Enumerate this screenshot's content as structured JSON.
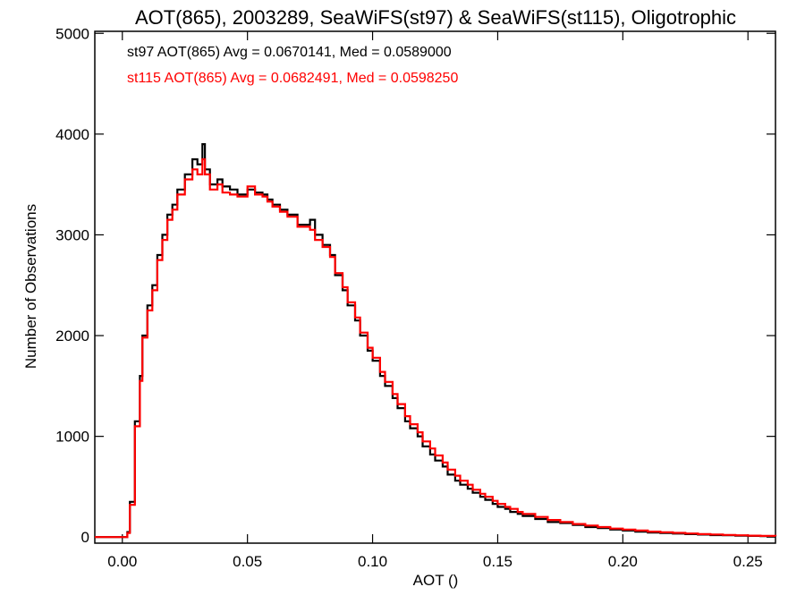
{
  "chart_data": {
    "type": "line",
    "title": "AOT(865), 2003289, SeaWiFS(st97) & SeaWiFS(st115), Oligotrophic",
    "xlabel": "AOT ()",
    "ylabel": "Number of Observations",
    "xlim": [
      -0.011,
      0.261
    ],
    "ylim": [
      -60,
      5020
    ],
    "x_ticks": [
      0.0,
      0.05,
      0.1,
      0.15,
      0.2,
      0.25
    ],
    "x_tick_labels": [
      "0.00",
      "0.05",
      "0.10",
      "0.15",
      "0.20",
      "0.25"
    ],
    "y_ticks": [
      0,
      1000,
      2000,
      3000,
      4000,
      5000
    ],
    "y_tick_labels": [
      "0",
      "1000",
      "2000",
      "3000",
      "4000",
      "5000"
    ],
    "grid": false,
    "legend_position": "top-left",
    "x": [
      -0.011,
      0.0,
      0.002,
      0.003,
      0.005,
      0.007,
      0.008,
      0.01,
      0.012,
      0.014,
      0.016,
      0.018,
      0.02,
      0.022,
      0.025,
      0.028,
      0.03,
      0.032,
      0.033,
      0.035,
      0.038,
      0.04,
      0.043,
      0.046,
      0.05,
      0.053,
      0.056,
      0.058,
      0.06,
      0.063,
      0.066,
      0.07,
      0.073,
      0.075,
      0.077,
      0.08,
      0.083,
      0.085,
      0.088,
      0.09,
      0.093,
      0.095,
      0.098,
      0.1,
      0.103,
      0.105,
      0.108,
      0.11,
      0.113,
      0.115,
      0.118,
      0.12,
      0.123,
      0.125,
      0.128,
      0.13,
      0.133,
      0.135,
      0.138,
      0.14,
      0.143,
      0.145,
      0.148,
      0.15,
      0.153,
      0.155,
      0.158,
      0.16,
      0.165,
      0.17,
      0.175,
      0.18,
      0.185,
      0.19,
      0.195,
      0.2,
      0.205,
      0.21,
      0.215,
      0.22,
      0.225,
      0.23,
      0.235,
      0.24,
      0.245,
      0.25,
      0.255,
      0.261
    ],
    "series": [
      {
        "name": "st97",
        "color": "#000000",
        "values": [
          0,
          0,
          50,
          350,
          1150,
          1600,
          2000,
          2300,
          2500,
          2800,
          3000,
          3200,
          3300,
          3450,
          3600,
          3750,
          3700,
          3900,
          3650,
          3500,
          3550,
          3480,
          3450,
          3400,
          3450,
          3420,
          3400,
          3350,
          3300,
          3250,
          3200,
          3100,
          3100,
          3150,
          3000,
          2900,
          2800,
          2600,
          2450,
          2300,
          2150,
          2000,
          1850,
          1750,
          1600,
          1500,
          1380,
          1280,
          1150,
          1080,
          1000,
          900,
          820,
          760,
          700,
          620,
          560,
          520,
          480,
          440,
          400,
          370,
          330,
          300,
          280,
          250,
          230,
          210,
          180,
          150,
          140,
          120,
          100,
          90,
          75,
          65,
          55,
          45,
          40,
          35,
          30,
          25,
          20,
          18,
          15,
          12,
          10,
          8
        ]
      },
      {
        "name": "st115",
        "color": "#ff0000",
        "values": [
          0,
          0,
          40,
          320,
          1100,
          1550,
          1980,
          2250,
          2450,
          2750,
          2950,
          3150,
          3250,
          3400,
          3550,
          3650,
          3600,
          3750,
          3600,
          3450,
          3500,
          3420,
          3400,
          3380,
          3480,
          3400,
          3380,
          3330,
          3280,
          3230,
          3180,
          3080,
          3080,
          3050,
          2950,
          2880,
          2780,
          2620,
          2480,
          2330,
          2180,
          2030,
          1880,
          1780,
          1640,
          1540,
          1420,
          1320,
          1200,
          1120,
          1040,
          950,
          880,
          810,
          740,
          670,
          610,
          560,
          520,
          470,
          430,
          400,
          360,
          330,
          300,
          280,
          250,
          230,
          200,
          170,
          150,
          130,
          115,
          100,
          85,
          75,
          65,
          55,
          48,
          42,
          36,
          30,
          26,
          22,
          18,
          15,
          12,
          10
        ]
      }
    ],
    "legend": [
      {
        "text": "st97 AOT(865) Avg = 0.0670141, Med = 0.0589000",
        "color": "#000000"
      },
      {
        "text": "st115 AOT(865) Avg = 0.0682491, Med = 0.0598250",
        "color": "#ff0000"
      }
    ]
  }
}
